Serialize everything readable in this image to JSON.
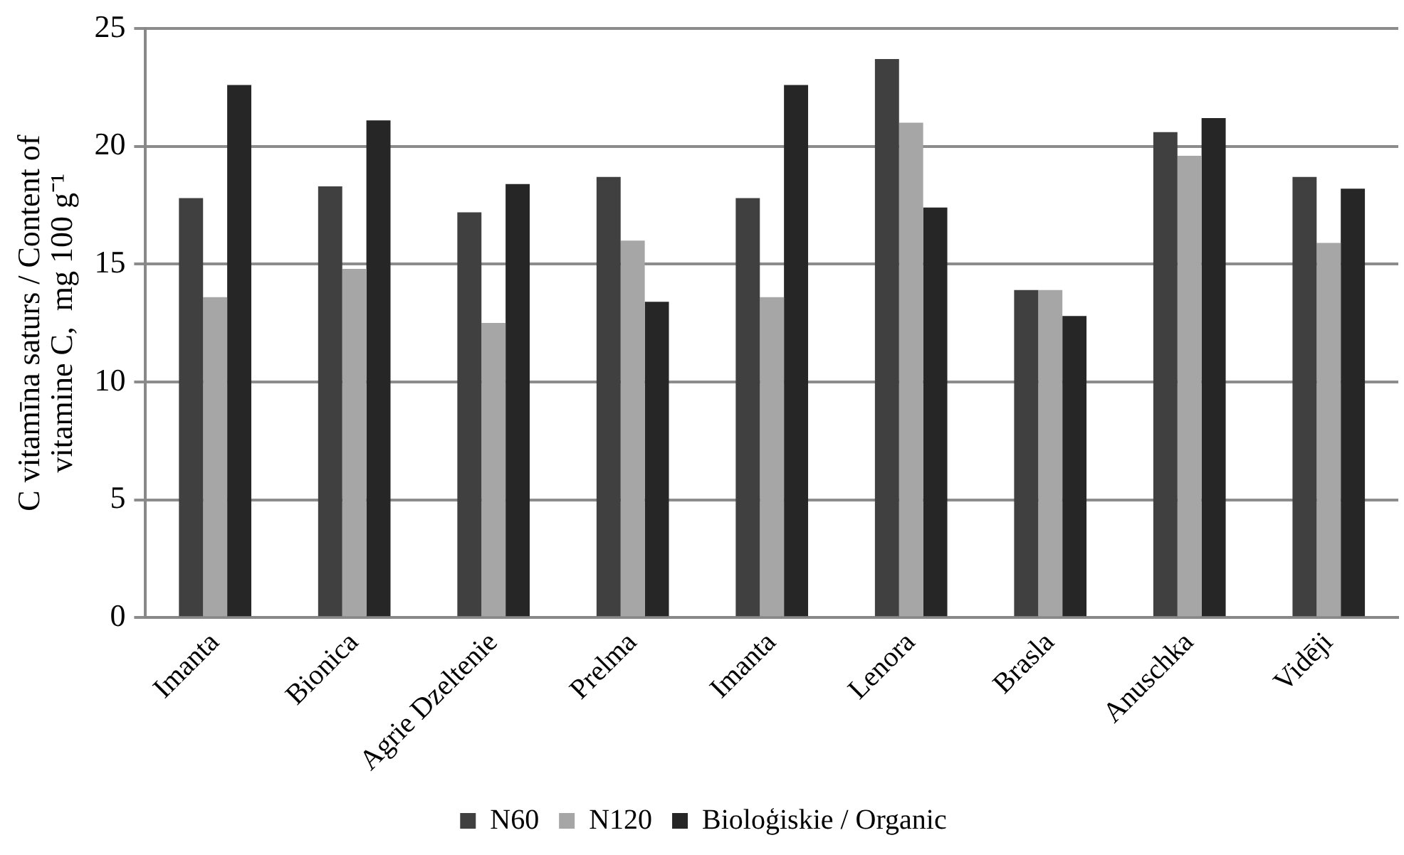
{
  "chart_data": {
    "type": "bar",
    "ylabel": "C vitamīna saturs / Content of vitamine C,  mg 100 g⁻¹",
    "categories": [
      "Imanta",
      "Bionica",
      "Agrie Dzeltenie",
      "Prelma",
      "Imanta",
      "Lenora",
      "Brasla",
      "Anuschka",
      "Vidēji"
    ],
    "series": [
      {
        "name": "N60",
        "color": "#404040",
        "values": [
          17.8,
          18.3,
          17.2,
          18.7,
          17.8,
          23.7,
          13.9,
          20.6,
          18.7
        ]
      },
      {
        "name": "N120",
        "color": "#a6a6a6",
        "values": [
          13.6,
          14.8,
          12.5,
          16.0,
          13.6,
          21.0,
          13.9,
          19.6,
          15.9
        ]
      },
      {
        "name": "Bioloģiskie / Organic",
        "color": "#262626",
        "values": [
          22.6,
          21.1,
          18.4,
          13.4,
          22.6,
          17.4,
          12.8,
          21.2,
          18.2
        ]
      }
    ],
    "ylim": [
      0,
      25
    ],
    "yticks": [
      0,
      5,
      10,
      15,
      20,
      25
    ],
    "grid": "y",
    "legend": "bottom"
  }
}
